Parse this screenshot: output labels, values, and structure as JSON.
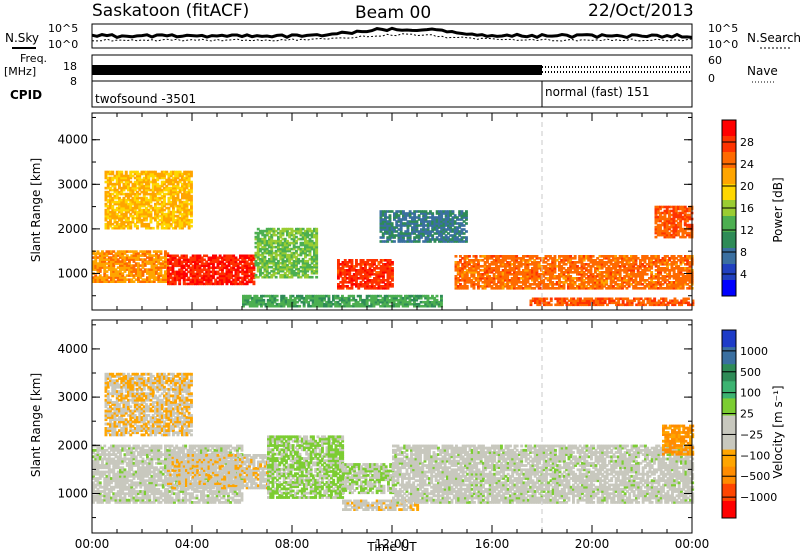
{
  "header": {
    "station": "Saskatoon (fitACF)",
    "beam": "Beam 00",
    "date": "22/Oct/2013"
  },
  "noise_panel": {
    "left_label": "N.Sky",
    "right_label": "N.Search",
    "top_tick": "10^5",
    "bottom_tick": "10^0"
  },
  "freq_panel": {
    "label_line1": "Freq.",
    "label_line2": "[MHz]",
    "left_ticks": [
      "18",
      "8"
    ],
    "right_ticks": [
      "60",
      "0"
    ],
    "right_label": "Nave"
  },
  "cpid_panel": {
    "label": "CPID",
    "modes": [
      {
        "name": "twofsound -3501",
        "start_hour": 0,
        "end_hour": 18
      },
      {
        "name": "normal (fast) 151",
        "start_hour": 18,
        "end_hour": 24
      }
    ]
  },
  "colors": {
    "power_scale": [
      "#0000ff",
      "#2040c0",
      "#3a6fa0",
      "#2e8b57",
      "#4caf50",
      "#9acd32",
      "#ffd700",
      "#ffa500",
      "#ff6a00",
      "#ff3300",
      "#ff0000"
    ],
    "velocity_scale": [
      "#ff0000",
      "#ff4500",
      "#ff8c00",
      "#ffa500",
      "#c8c8be",
      "#c8c8be",
      "#7ccd32",
      "#3cb371",
      "#2e8b57",
      "#3a6fa0",
      "#1e3cc8"
    ]
  },
  "chart_data": [
    {
      "type": "heatmap",
      "panel": "power",
      "xlabel": "Time UT",
      "ylabel": "Slant Range [km]",
      "xlim": [
        0,
        24
      ],
      "ylim": [
        180,
        4600
      ],
      "x_ticks": [
        "00:00",
        "04:00",
        "08:00",
        "12:00",
        "16:00",
        "20:00",
        "00:00"
      ],
      "y_ticks": [
        "1000",
        "2000",
        "3000",
        "4000"
      ],
      "colorbar": {
        "label": "Power [dB]",
        "ticks": [
          "4",
          "8",
          "12",
          "16",
          "20",
          "24",
          "28"
        ],
        "range": [
          0,
          31
        ]
      },
      "regions": [
        {
          "t0": 0.0,
          "t1": 3.0,
          "r0": 800,
          "r1": 1500,
          "value": 22
        },
        {
          "t0": 3.0,
          "t1": 6.5,
          "r0": 750,
          "r1": 1400,
          "value": 28
        },
        {
          "t0": 0.5,
          "t1": 4.0,
          "r0": 2000,
          "r1": 3300,
          "value": 20
        },
        {
          "t0": 6.5,
          "t1": 9.0,
          "r0": 900,
          "r1": 2000,
          "value": 14
        },
        {
          "t0": 9.8,
          "t1": 12.0,
          "r0": 650,
          "r1": 1300,
          "value": 27
        },
        {
          "t0": 11.5,
          "t1": 15.0,
          "r0": 1700,
          "r1": 2400,
          "value": 8
        },
        {
          "t0": 14.5,
          "t1": 24.0,
          "r0": 650,
          "r1": 1400,
          "value": 24
        },
        {
          "t0": 17.5,
          "t1": 24.0,
          "r0": 280,
          "r1": 450,
          "value": 25
        },
        {
          "t0": 22.5,
          "t1": 24.0,
          "r0": 1800,
          "r1": 2500,
          "value": 25
        },
        {
          "t0": 6.0,
          "t1": 14.0,
          "r0": 250,
          "r1": 500,
          "value": 12
        }
      ]
    },
    {
      "type": "heatmap",
      "panel": "velocity",
      "xlabel": "Time UT",
      "ylabel": "Slant Range [km]",
      "xlim": [
        0,
        24
      ],
      "ylim": [
        180,
        4600
      ],
      "x_ticks": [
        "00:00",
        "04:00",
        "08:00",
        "12:00",
        "16:00",
        "20:00",
        "00:00"
      ],
      "y_ticks": [
        "1000",
        "2000",
        "3000",
        "4000"
      ],
      "colorbar": {
        "label": "Velocity [m s⁻¹]",
        "ticks": [
          "1000",
          "500",
          "100",
          "25",
          "−25",
          "−100",
          "−500",
          "−1000"
        ],
        "range": [
          -1200,
          1200
        ]
      },
      "regions": [
        {
          "t0": 0.0,
          "t1": 6.0,
          "r0": 800,
          "r1": 2000,
          "value": 0
        },
        {
          "t0": 0.5,
          "t1": 4.0,
          "r0": 2200,
          "r1": 3500,
          "value": -300
        },
        {
          "t0": 3.0,
          "t1": 7.0,
          "r0": 1100,
          "r1": 1800,
          "value": -250
        },
        {
          "t0": 7.0,
          "t1": 10.0,
          "r0": 900,
          "r1": 2200,
          "value": 150
        },
        {
          "t0": 10.0,
          "t1": 12.0,
          "r0": 1000,
          "r1": 1600,
          "value": 100
        },
        {
          "t0": 10.0,
          "t1": 13.0,
          "r0": 650,
          "r1": 850,
          "value": -250
        },
        {
          "t0": 12.0,
          "t1": 24.0,
          "r0": 800,
          "r1": 2000,
          "value": 0
        },
        {
          "t0": 22.8,
          "t1": 24.0,
          "r0": 1800,
          "r1": 2400,
          "value": -600
        }
      ]
    }
  ]
}
